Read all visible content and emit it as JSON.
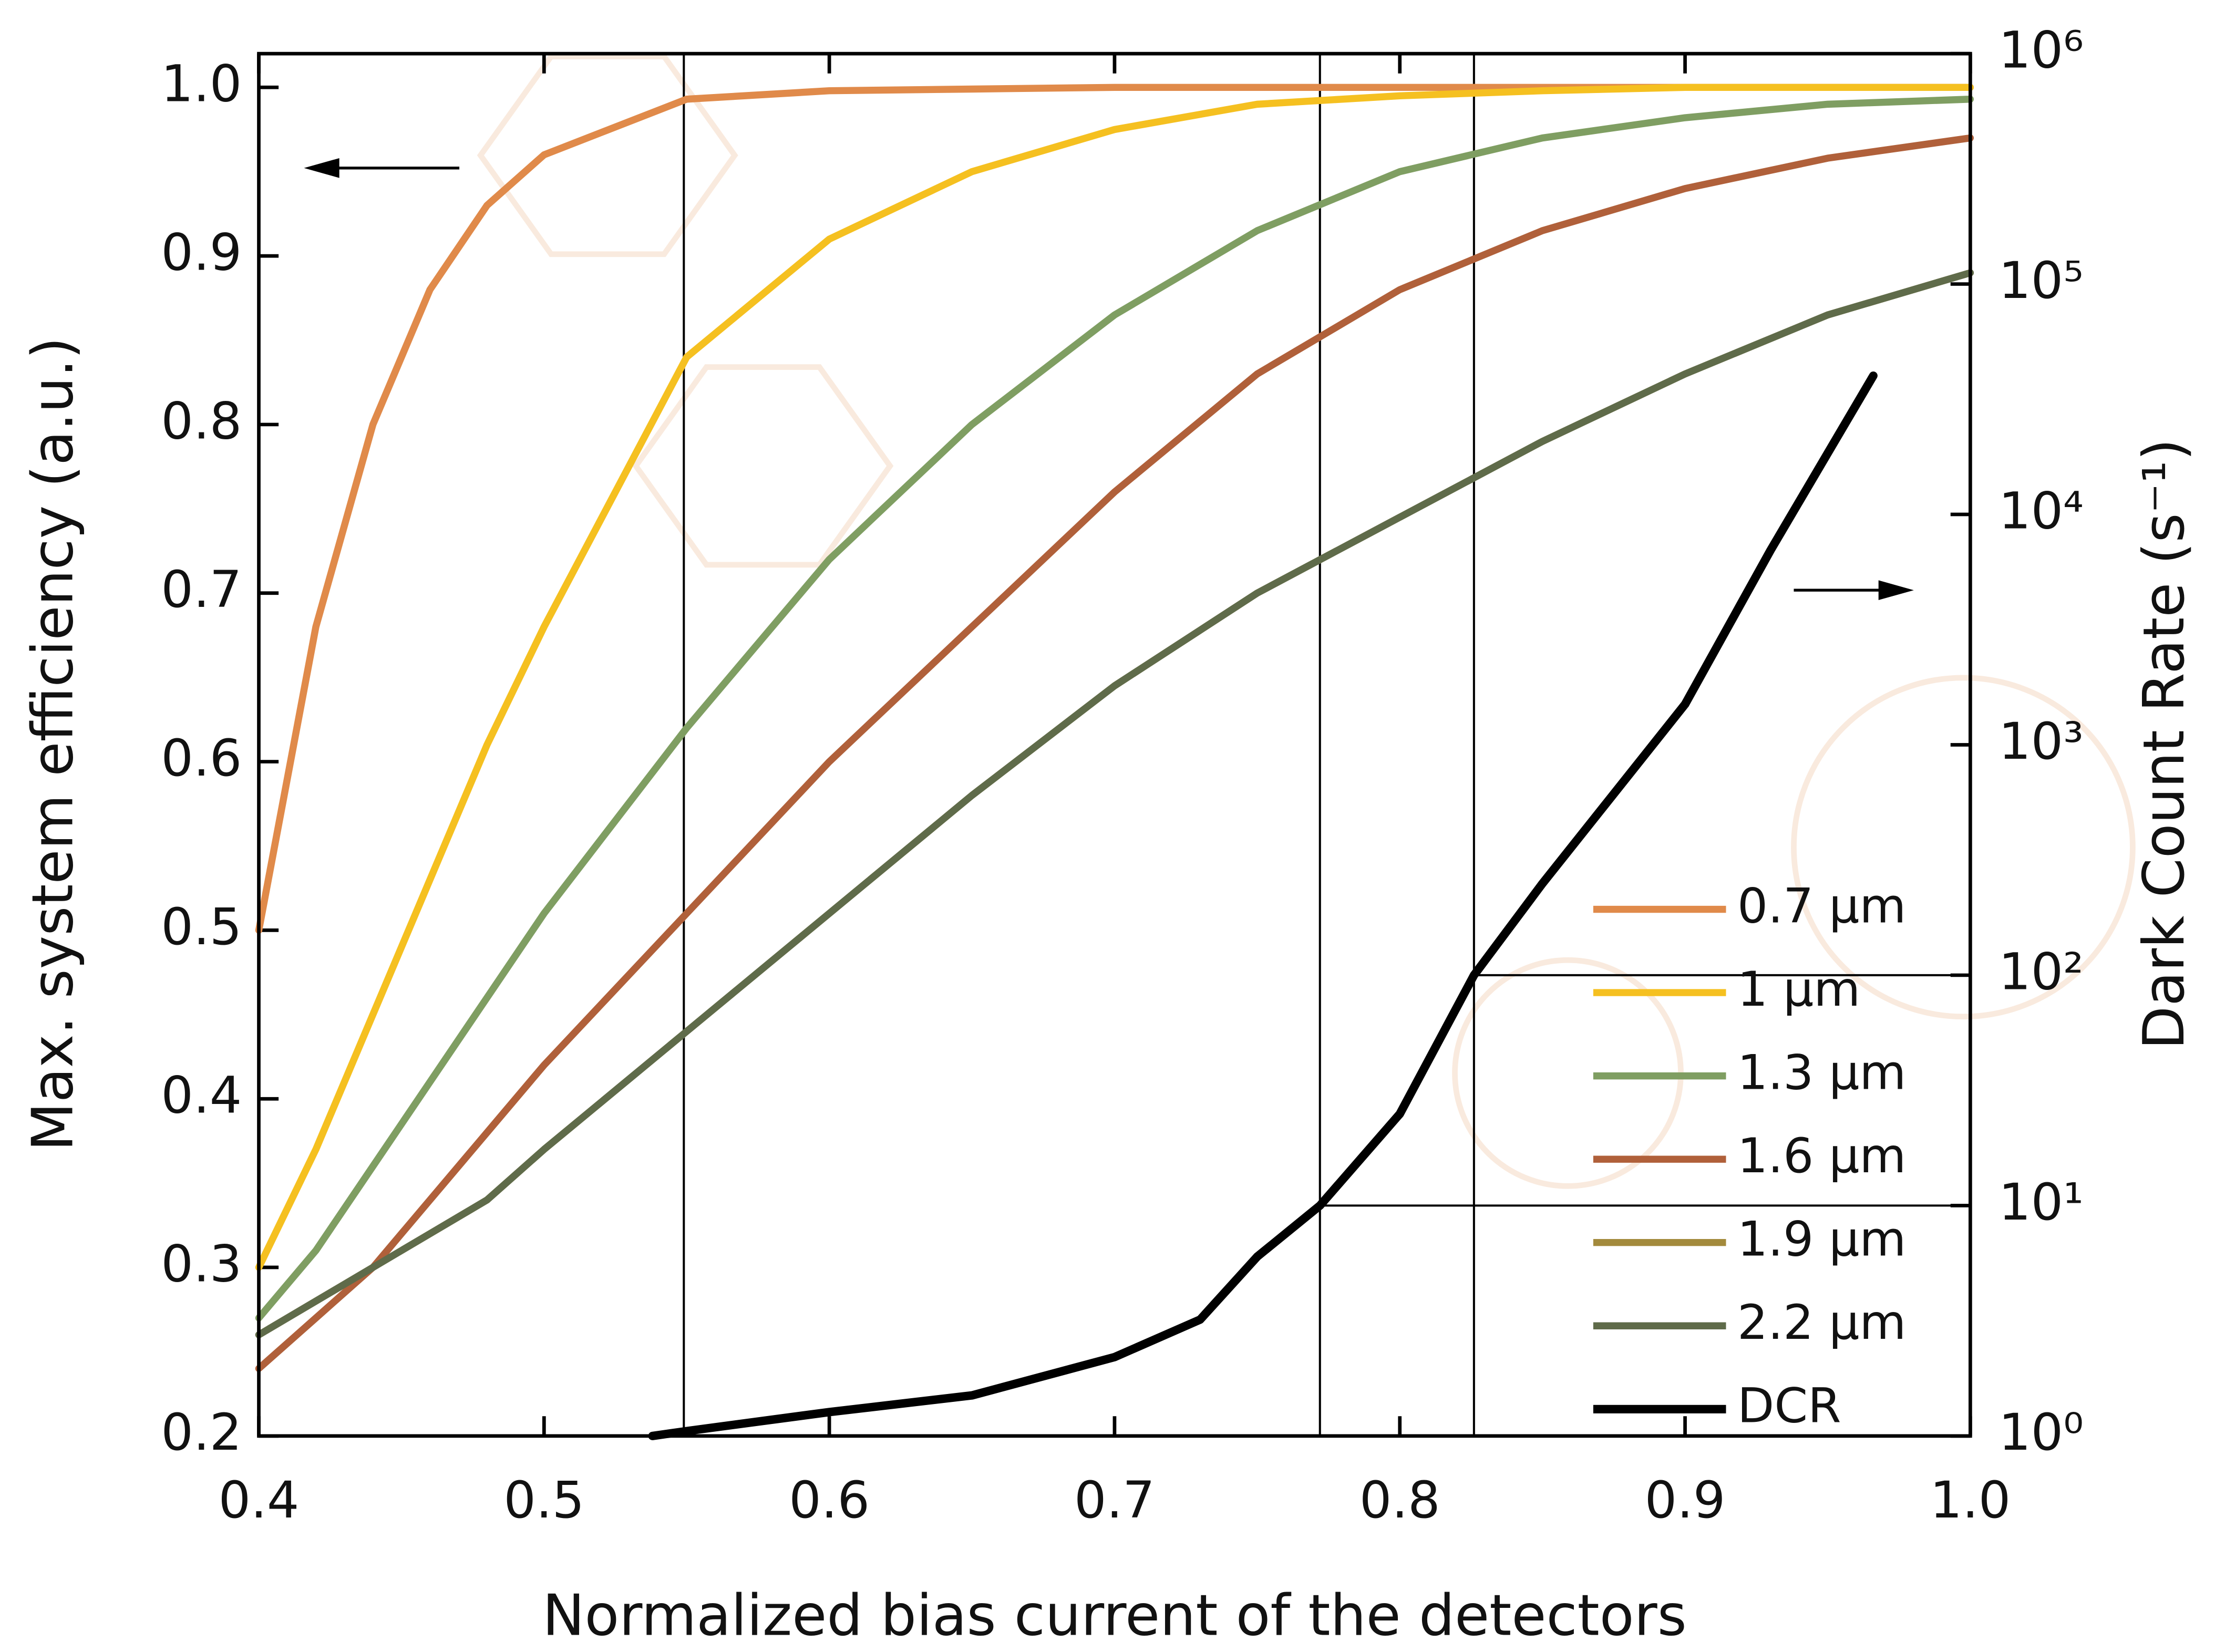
{
  "chart_data": {
    "type": "line",
    "xlabel": "Normalized bias current of the detectors",
    "ylabel": "Max. system efficiency (a.u.)",
    "y2label": "Dark Count Rate (s⁻¹)",
    "xlim": [
      0.4,
      1.0
    ],
    "xticks": [
      0.4,
      0.5,
      0.6,
      0.7,
      0.8,
      0.9,
      {
        "value": 1,
        "label": "1.0"
      }
    ],
    "ylim": [
      0.2,
      1.02
    ],
    "yticks": [
      0.2,
      0.3,
      0.4,
      0.5,
      0.6,
      0.7,
      0.8,
      0.9,
      {
        "value": 1,
        "label": "1.0"
      }
    ],
    "y2lim": [
      1,
      1000000
    ],
    "y2scale": "log",
    "y2ticks": [
      {
        "value": 1,
        "label": "10⁰"
      },
      {
        "value": 10,
        "label": "10¹"
      },
      {
        "value": 100,
        "label": "10²"
      },
      {
        "value": 1000,
        "label": "10³"
      },
      {
        "value": 10000,
        "label": "10⁴"
      },
      {
        "value": 100000,
        "label": "10⁵"
      },
      {
        "value": 1000000,
        "label": "10⁶"
      }
    ],
    "legend": "lower right",
    "vlines": [
      0.549,
      0.772,
      0.826
    ],
    "hlines": [
      {
        "x": 0.772,
        "y2": 10
      },
      {
        "x": 0.826,
        "y2": 100
      }
    ],
    "x": [
      0.4,
      0.42,
      0.44,
      0.46,
      0.48,
      0.5,
      0.55,
      0.6,
      0.65,
      0.7,
      0.75,
      0.8,
      0.85,
      0.9,
      0.95,
      1.0
    ],
    "series": [
      {
        "name": "0.7 µm",
        "color": "#e08a4a",
        "values": [
          0.5,
          0.68,
          0.8,
          0.88,
          0.93,
          0.96,
          0.993,
          0.998,
          0.999,
          1,
          1,
          1,
          1,
          1,
          1,
          1
        ]
      },
      {
        "name": "1 µm",
        "color": "#f5c020",
        "values": [
          0.3,
          0.37,
          0.45,
          0.53,
          0.61,
          0.68,
          0.84,
          0.91,
          0.95,
          0.975,
          0.99,
          0.995,
          0.998,
          1,
          1,
          1
        ]
      },
      {
        "name": "1.3 µm",
        "color": "#7f9e62",
        "values": [
          0.27,
          0.31,
          0.36,
          0.41,
          0.46,
          0.51,
          0.62,
          0.72,
          0.8,
          0.865,
          0.915,
          0.95,
          0.97,
          0.982,
          0.99,
          0.993
        ]
      },
      {
        "name": "1.6 µm",
        "color": "#b0603a",
        "values": [
          0.24,
          0.27,
          0.3,
          0.34,
          0.38,
          0.42,
          0.51,
          0.6,
          0.68,
          0.76,
          0.83,
          0.88,
          0.915,
          0.94,
          0.958,
          0.97
        ]
      },
      {
        "name": "1.9 µm",
        "color": "#a38a3c",
        "values": [
          0.26,
          0.28,
          0.3,
          0.32,
          0.34,
          0.37,
          0.44,
          0.51,
          0.58,
          0.645,
          0.7,
          0.745,
          0.79,
          0.83,
          0.865,
          0.89
        ]
      },
      {
        "name": "2.2 µm",
        "color": "#5f6b4a",
        "values": [
          0.26,
          0.28,
          0.3,
          0.32,
          0.34,
          0.37,
          0.44,
          0.51,
          0.58,
          0.645,
          0.7,
          0.745,
          0.79,
          0.83,
          0.865,
          0.89
        ]
      },
      {
        "name": "DCR",
        "color": "#000000",
        "axis": "y2",
        "x": [
          0.538,
          0.55,
          0.6,
          0.65,
          0.7,
          0.73,
          0.75,
          0.772,
          0.8,
          0.826,
          0.85,
          0.9,
          0.93,
          0.966
        ],
        "values": [
          1.0,
          1.05,
          1.27,
          1.5,
          2.2,
          3.2,
          6,
          10,
          25,
          100,
          250,
          1500,
          7000,
          40000
        ]
      }
    ]
  }
}
